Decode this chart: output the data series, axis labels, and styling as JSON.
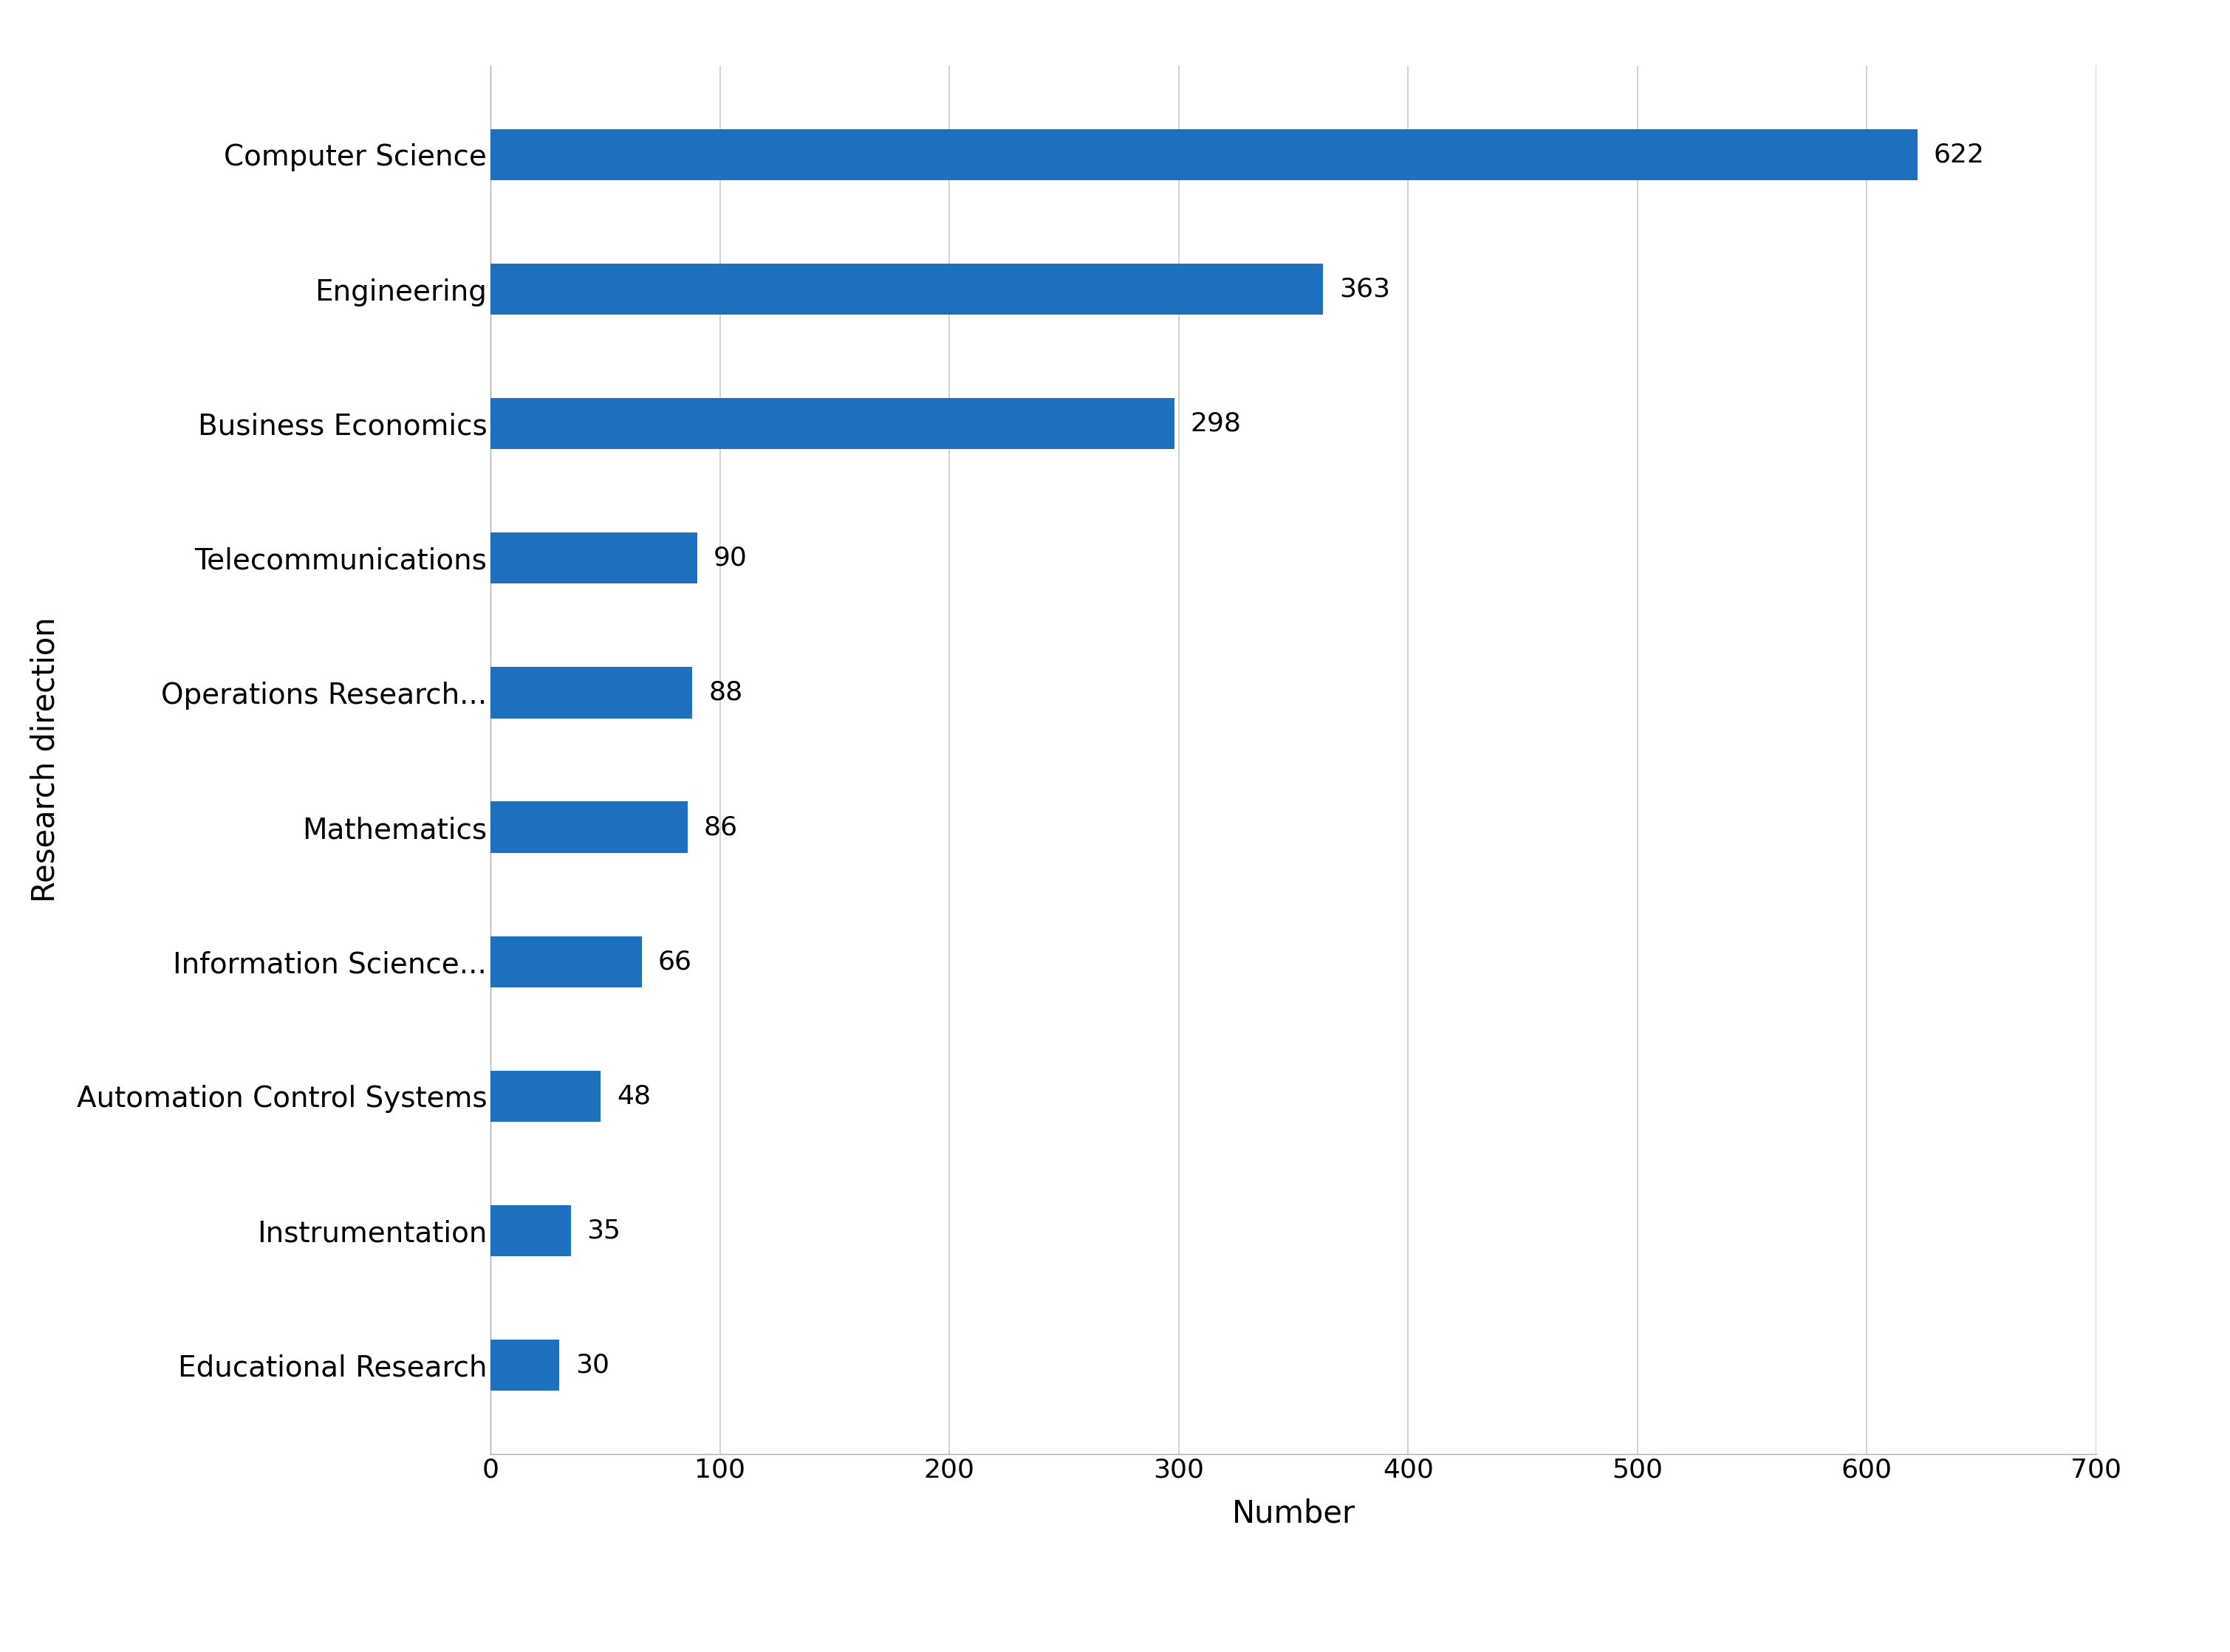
{
  "categories": [
    "Educational Research",
    "Instrumentation",
    "Automation Control Systems",
    "Information Science...",
    "Mathematics",
    "Operations Research...",
    "Telecommunications",
    "Business Economics",
    "Engineering",
    "Computer Science"
  ],
  "values": [
    30,
    35,
    48,
    66,
    86,
    88,
    90,
    298,
    363,
    622
  ],
  "bar_color": "#1F6FBF",
  "xlabel": "Number",
  "ylabel": "Research direction",
  "xlim": [
    0,
    700
  ],
  "xticks": [
    0,
    100,
    200,
    300,
    400,
    500,
    600,
    700
  ],
  "background_color": "#ffffff",
  "bar_height": 0.38,
  "category_fontsize": 28,
  "tick_fontsize": 26,
  "axis_label_fontsize": 30,
  "value_label_fontsize": 26,
  "grid_color": "#cccccc",
  "grid_linewidth": 1.2,
  "spine_color": "#aaaaaa"
}
